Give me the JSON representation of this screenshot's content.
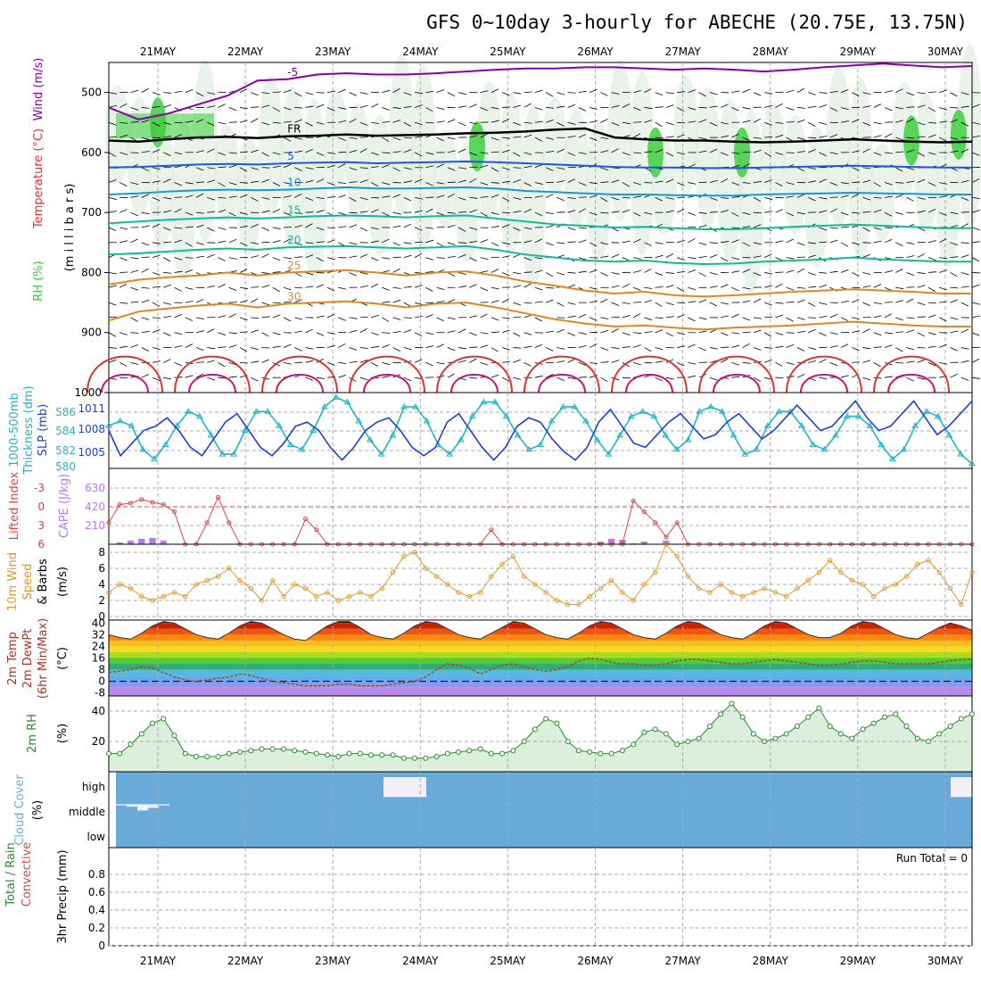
{
  "title": "GFS 0~10day 3-hourly for ABECHE (20.75E, 13.75N)",
  "dates": [
    "21MAY",
    "22MAY",
    "23MAY",
    "24MAY",
    "25MAY",
    "26MAY",
    "27MAY",
    "28MAY",
    "29MAY",
    "30MAY"
  ],
  "colors": {
    "grid": "#aaaaaa",
    "rh_green": "#33cc33",
    "temp_purple": "#8800aa",
    "temp_blue": "#2255dd",
    "temp_lightblue": "#1199dd",
    "temp_teal": "#11bb99",
    "temp_orange": "#dd8822",
    "temp_red": "#dd3333",
    "temp_magenta": "#cc1177",
    "slp": "#1f3fcf",
    "thick": "#22b5c5",
    "lifted": "#dd4444",
    "cape": "#bb77ee",
    "wind10": "#e3962c",
    "rh2m": "#2a8a2a",
    "cloud": "#6aaad8"
  },
  "chart_data": [
    {
      "type": "contour",
      "panel": "upper-air",
      "ylabel_parts": [
        "RH (%)",
        "Temperature (°C)",
        "Wind (m/s)"
      ],
      "ylabel_units": "(m i l l i b a r s)",
      "yticks": [
        "500",
        "600",
        "700",
        "800",
        "900",
        "1000"
      ],
      "ylim": [
        1000,
        450
      ],
      "isotherms": [
        {
          "label": "-5",
          "levels": [
            525,
            545,
            535,
            520,
            505,
            480,
            478,
            470,
            468,
            470,
            470,
            468,
            465,
            462,
            460,
            460,
            458,
            458,
            460,
            462,
            460,
            462,
            465,
            462,
            458,
            455,
            452,
            455,
            458,
            456
          ]
        },
        {
          "label": "FR",
          "levels": [
            580,
            582,
            578,
            575,
            574,
            576,
            573,
            572,
            570,
            572,
            571,
            570,
            568,
            567,
            565,
            562,
            560,
            575,
            578,
            580,
            580,
            582,
            583,
            582,
            580,
            578,
            580,
            582,
            583,
            582
          ]
        },
        {
          "label": "5",
          "levels": [
            625,
            624,
            622,
            620,
            619,
            620,
            618,
            617,
            616,
            618,
            617,
            616,
            615,
            616,
            618,
            620,
            622,
            624,
            625,
            625,
            626,
            626,
            625,
            624,
            623,
            622,
            623,
            624,
            625,
            625
          ]
        },
        {
          "label": "10",
          "levels": [
            670,
            668,
            665,
            663,
            662,
            663,
            662,
            660,
            658,
            660,
            660,
            659,
            658,
            660,
            664,
            666,
            668,
            670,
            670,
            671,
            672,
            672,
            670,
            669,
            668,
            667,
            668,
            669,
            670,
            670
          ]
        },
        {
          "label": "15",
          "levels": [
            718,
            715,
            712,
            710,
            708,
            710,
            708,
            706,
            705,
            706,
            708,
            706,
            705,
            710,
            715,
            720,
            722,
            725,
            724,
            726,
            728,
            728,
            726,
            724,
            722,
            720,
            722,
            724,
            726,
            726
          ]
        },
        {
          "label": "20",
          "levels": [
            770,
            768,
            765,
            762,
            760,
            762,
            758,
            757,
            756,
            758,
            760,
            758,
            756,
            762,
            770,
            775,
            780,
            782,
            780,
            784,
            786,
            785,
            782,
            780,
            778,
            775,
            778,
            780,
            782,
            782
          ]
        },
        {
          "label": "25",
          "levels": [
            820,
            812,
            808,
            805,
            800,
            805,
            800,
            798,
            796,
            800,
            805,
            800,
            798,
            805,
            815,
            822,
            830,
            835,
            832,
            838,
            840,
            838,
            835,
            832,
            830,
            828,
            830,
            832,
            835,
            835
          ]
        },
        {
          "label": "30",
          "levels": [
            880,
            865,
            860,
            855,
            852,
            858,
            852,
            850,
            848,
            852,
            858,
            852,
            850,
            858,
            868,
            878,
            885,
            890,
            888,
            892,
            895,
            892,
            890,
            888,
            885,
            882,
            885,
            888,
            890,
            890
          ]
        }
      ]
    },
    {
      "type": "line",
      "panel": "slp-thickness",
      "ylabel_left": [
        "1000-500mb",
        "Thickness (dm)"
      ],
      "ylabel_right": "SLP (mb)",
      "thickness_ticks": [
        "586",
        "584",
        "582",
        "580"
      ],
      "slp_ticks": [
        "1011",
        "1008",
        "1005"
      ],
      "series": [
        {
          "name": "Thickness",
          "axis": "thick",
          "ylim": [
            579.5,
            587.5
          ],
          "values": [
            584,
            584.5,
            584,
            581.5,
            580.5,
            582,
            584,
            585.5,
            585,
            583,
            581,
            581,
            583.5,
            585.5,
            585.5,
            584,
            582,
            581.5,
            583.5,
            586,
            587,
            586.5,
            584.5,
            582.5,
            581,
            583,
            586,
            586,
            584.5,
            582,
            581,
            582.5,
            585,
            586.5,
            586.5,
            585,
            583,
            581.5,
            582,
            584.5,
            586,
            586,
            584.5,
            582.5,
            581,
            583,
            585,
            585.5,
            585,
            583,
            581.5,
            582.5,
            585.5,
            586,
            585.5,
            583,
            581,
            581.5,
            584,
            585.5,
            585.5,
            584,
            582,
            581.5,
            583,
            585,
            585,
            584,
            582,
            580.5,
            581.5,
            584,
            585.5,
            585,
            583,
            581,
            580
          ]
        },
        {
          "name": "SLP",
          "axis": "slp",
          "ylim": [
            1003.5,
            1012.5
          ],
          "values": [
            1008,
            1005,
            1006.5,
            1008,
            1008.5,
            1009.5,
            1008,
            1006,
            1005,
            1007,
            1009,
            1010,
            1008,
            1006,
            1005,
            1006.5,
            1008.5,
            1009,
            1008,
            1006,
            1004.5,
            1006,
            1008,
            1009,
            1009.5,
            1008,
            1006,
            1005,
            1006,
            1009,
            1010,
            1008,
            1006,
            1004.5,
            1006,
            1008.5,
            1009.5,
            1009,
            1007,
            1005.5,
            1004.5,
            1006,
            1009,
            1010.5,
            1008.5,
            1006.5,
            1006,
            1007.5,
            1009,
            1010,
            1008.5,
            1007,
            1007.5,
            1009,
            1010,
            1008.5,
            1007,
            1008,
            1009.5,
            1011,
            1009.5,
            1008,
            1008.5,
            1010,
            1011.5,
            1009.5,
            1008,
            1008.5,
            1010,
            1011.5,
            1009.5,
            1007.5,
            1008.5,
            1010,
            1011.5
          ]
        }
      ]
    },
    {
      "type": "bar+line",
      "panel": "lifted-cape",
      "ylabel_left": "Lifted Index",
      "ylabel_right": "CAPE (J/kg)",
      "li_ticks": [
        "-3",
        "0",
        "3",
        "6"
      ],
      "cape_ticks": [
        "630",
        "420",
        "210"
      ],
      "series": [
        {
          "name": "Lifted Index",
          "axis": "li",
          "ylim": [
            6,
            -4.5
          ],
          "values": [
            3,
            0.5,
            0.3,
            -0.2,
            0.2,
            0.5,
            1.5,
            6,
            6,
            3,
            -0.5,
            3,
            6,
            6,
            6,
            6,
            6,
            6,
            2.5,
            4,
            6,
            6,
            6,
            6,
            6,
            6,
            6,
            6,
            6,
            6,
            6,
            6,
            6,
            6,
            6,
            4,
            6,
            6,
            6,
            6,
            6,
            6,
            6,
            6,
            6,
            6,
            6,
            6,
            0,
            1.5,
            3,
            5,
            3,
            6,
            6,
            6,
            6,
            6,
            6,
            6,
            6,
            6,
            6,
            6,
            6,
            6,
            6,
            6,
            6,
            6,
            6,
            6,
            6,
            6,
            6,
            6,
            6,
            6,
            6,
            6
          ]
        },
        {
          "name": "CAPE",
          "axis": "cape",
          "ylim": [
            0,
            840
          ],
          "values": [
            0,
            20,
            40,
            60,
            70,
            40,
            0,
            0,
            0,
            0,
            0,
            0,
            0,
            0,
            0,
            0,
            0,
            0,
            0,
            0,
            0,
            0,
            0,
            0,
            0,
            0,
            0,
            0,
            0,
            0,
            0,
            0,
            0,
            0,
            0,
            0,
            0,
            0,
            0,
            0,
            0,
            0,
            0,
            0,
            0,
            30,
            60,
            50,
            10,
            30,
            0,
            40,
            0,
            0,
            0,
            0,
            0,
            0,
            0,
            0,
            0,
            0,
            0,
            0,
            0,
            0,
            0,
            0,
            0,
            0,
            0,
            0,
            0,
            0,
            0,
            0,
            0,
            0,
            0,
            0
          ]
        }
      ]
    },
    {
      "type": "line",
      "panel": "wind10",
      "ylabel": [
        "10m Wind",
        "Speed",
        "& Barbs",
        "(m/s)"
      ],
      "yticks": [
        "8",
        "6",
        "4",
        "2",
        "0"
      ],
      "ylim": [
        0,
        9
      ],
      "values": [
        3,
        4,
        3.5,
        2.5,
        2,
        2.5,
        3,
        2.5,
        4,
        4.5,
        5,
        6,
        4.5,
        3.5,
        2,
        4.5,
        2.5,
        4,
        3.5,
        2.5,
        3,
        2,
        2.5,
        3,
        2.5,
        3.5,
        5.5,
        7.5,
        8,
        6,
        5,
        4,
        3,
        2.5,
        3,
        5,
        6.5,
        7.5,
        5,
        4,
        3,
        2,
        1.5,
        1.5,
        2.5,
        3.5,
        4.5,
        3,
        2,
        4,
        5.5,
        9,
        7.5,
        5,
        3.5,
        3,
        4,
        3,
        2.5,
        3,
        3.5,
        3,
        2.5,
        3.5,
        4.5,
        5.5,
        7,
        5.5,
        4.5,
        4,
        2.5,
        3.5,
        4,
        5,
        6.5,
        7,
        5.5,
        3.5,
        1.5,
        5.5
      ]
    },
    {
      "type": "area",
      "panel": "temp2m",
      "ylabel": [
        "2m Temp",
        "2m DewPt",
        "(6hr Min/Max)",
        "(°C)"
      ],
      "yticks": [
        "40",
        "32",
        "24",
        "16",
        "8",
        "0",
        "-8"
      ],
      "ylim": [
        -10,
        42
      ],
      "temp": [
        32,
        30,
        29,
        33,
        38,
        41,
        40,
        36,
        32,
        30,
        29,
        33,
        38,
        41,
        40,
        36,
        32,
        29,
        28,
        33,
        38,
        41,
        41,
        37,
        32,
        30,
        29,
        33,
        38,
        41,
        40,
        36,
        32,
        30,
        29,
        33,
        37,
        41,
        40,
        36,
        32,
        30,
        29,
        33,
        38,
        41,
        40,
        36,
        32,
        30,
        29,
        33,
        38,
        41,
        40,
        36,
        32,
        30,
        29,
        33,
        38,
        41,
        40,
        36,
        32,
        30,
        30,
        33,
        38,
        41,
        40,
        36,
        32,
        30,
        29,
        33,
        37,
        40,
        38,
        35
      ],
      "dewpt": [
        6,
        7,
        8,
        10,
        9,
        6,
        3,
        1,
        0,
        1,
        2,
        3,
        5,
        4,
        2,
        0,
        -1,
        -2,
        -3,
        -3,
        -3,
        -2,
        -2,
        -3,
        -3,
        -3,
        -2,
        -1,
        0,
        3,
        8,
        12,
        11,
        9,
        5,
        8,
        11,
        12,
        10,
        8,
        7,
        8,
        10,
        14,
        16,
        15,
        13,
        12,
        12,
        11,
        11,
        12,
        14,
        15,
        15,
        14,
        13,
        12,
        12,
        13,
        14,
        15,
        14,
        13,
        12,
        11,
        11,
        12,
        13,
        14,
        14,
        13,
        12,
        12,
        12,
        12,
        13,
        14,
        15,
        15
      ],
      "series": [
        {
          "name": "2m Temp"
        },
        {
          "name": "2m DewPt"
        }
      ]
    },
    {
      "type": "area",
      "panel": "rh2m",
      "ylabel": [
        "2m RH",
        "(%)"
      ],
      "yticks": [
        "40",
        "20"
      ],
      "ylim": [
        0,
        50
      ],
      "values": [
        12,
        12,
        18,
        25,
        32,
        35,
        24,
        12,
        10,
        10,
        10,
        12,
        13,
        14,
        15,
        15,
        15,
        14,
        13,
        12,
        11,
        10,
        12,
        12,
        11,
        11,
        11,
        9,
        9,
        9,
        10,
        12,
        13,
        14,
        15,
        12,
        12,
        14,
        20,
        28,
        35,
        32,
        20,
        14,
        13,
        12,
        12,
        14,
        18,
        26,
        28,
        25,
        18,
        20,
        22,
        30,
        38,
        45,
        36,
        25,
        20,
        22,
        25,
        30,
        36,
        42,
        30,
        25,
        22,
        28,
        32,
        36,
        38,
        30,
        22,
        20,
        25,
        30,
        35,
        38
      ]
    },
    {
      "type": "step-area",
      "panel": "cloud",
      "ylabel": [
        "Cloud Cover",
        "(%)"
      ],
      "ytick_labels": [
        "high",
        "middle",
        "low"
      ],
      "high": [
        100,
        100,
        100,
        100,
        100,
        100,
        100,
        100,
        100,
        100,
        100,
        100,
        100,
        100,
        100,
        100,
        100,
        100,
        100,
        100,
        100,
        100,
        100,
        100,
        100,
        10,
        10,
        10,
        10,
        100,
        100,
        100,
        100,
        100,
        100,
        100,
        100,
        100,
        100,
        100,
        100,
        100,
        100,
        100,
        100,
        100,
        100,
        100,
        100,
        100,
        100,
        100,
        100,
        100,
        100,
        100,
        100,
        100,
        100,
        100,
        100,
        100,
        100,
        100,
        100,
        100,
        100,
        100,
        100,
        100,
        100,
        100,
        100,
        100,
        100,
        100,
        100,
        100,
        20,
        20
      ],
      "middle": [
        10,
        20,
        50,
        30,
        10,
        0,
        0,
        0,
        0,
        0,
        0,
        0,
        0,
        0,
        0,
        0,
        0,
        0,
        0,
        0,
        0,
        0,
        0,
        0,
        0,
        0,
        0,
        0,
        0,
        0,
        0,
        0,
        0,
        0,
        0,
        0,
        0,
        0,
        0,
        0,
        0,
        0,
        0,
        0,
        0,
        0,
        0,
        0,
        0,
        0,
        0,
        0,
        0,
        0,
        0,
        0,
        0,
        0,
        0,
        0,
        0,
        0,
        0,
        0,
        0,
        0,
        0,
        0,
        0,
        0,
        0,
        0,
        0,
        0,
        0,
        0,
        0,
        0,
        0,
        0
      ]
    },
    {
      "type": "bar",
      "panel": "precip",
      "ylabel": [
        "Total / Rain",
        "Convective",
        "3hr Precip (mm)"
      ],
      "yticks": [
        "0.8",
        "0.6",
        "0.4",
        "0.2",
        "0"
      ],
      "ylim": [
        0,
        1
      ],
      "annotation": "Run Total = 0",
      "values": []
    }
  ]
}
